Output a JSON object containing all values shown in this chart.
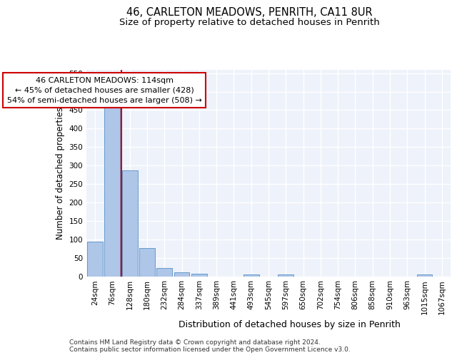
{
  "title": "46, CARLETON MEADOWS, PENRITH, CA11 8UR",
  "subtitle": "Size of property relative to detached houses in Penrith",
  "xlabel": "Distribution of detached houses by size in Penrith",
  "ylabel": "Number of detached properties",
  "bar_categories": [
    "24sqm",
    "76sqm",
    "128sqm",
    "180sqm",
    "232sqm",
    "284sqm",
    "337sqm",
    "389sqm",
    "441sqm",
    "493sqm",
    "545sqm",
    "597sqm",
    "650sqm",
    "702sqm",
    "754sqm",
    "806sqm",
    "858sqm",
    "910sqm",
    "963sqm",
    "1015sqm",
    "1067sqm"
  ],
  "bar_values": [
    93,
    460,
    287,
    76,
    23,
    10,
    6,
    0,
    0,
    5,
    0,
    5,
    0,
    0,
    0,
    0,
    0,
    0,
    0,
    5,
    0
  ],
  "bar_color": "#aec6e8",
  "bar_edgecolor": "#6699cc",
  "annotation_text": "46 CARLETON MEADOWS: 114sqm\n← 45% of detached houses are smaller (428)\n54% of semi-detached houses are larger (508) →",
  "annotation_box_edgecolor": "#cc0000",
  "vline_color": "#cc0000",
  "vline_x_index": 1.5,
  "ylim": [
    0,
    560
  ],
  "yticks": [
    0,
    50,
    100,
    150,
    200,
    250,
    300,
    350,
    400,
    450,
    500,
    550
  ],
  "background_color": "#eef2fb",
  "grid_color": "#ffffff",
  "footer": "Contains HM Land Registry data © Crown copyright and database right 2024.\nContains public sector information licensed under the Open Government Licence v3.0.",
  "title_fontsize": 10.5,
  "subtitle_fontsize": 9.5,
  "ylabel_fontsize": 8.5,
  "xlabel_fontsize": 9,
  "tick_fontsize": 7.5,
  "annotation_fontsize": 8,
  "footer_fontsize": 6.5
}
